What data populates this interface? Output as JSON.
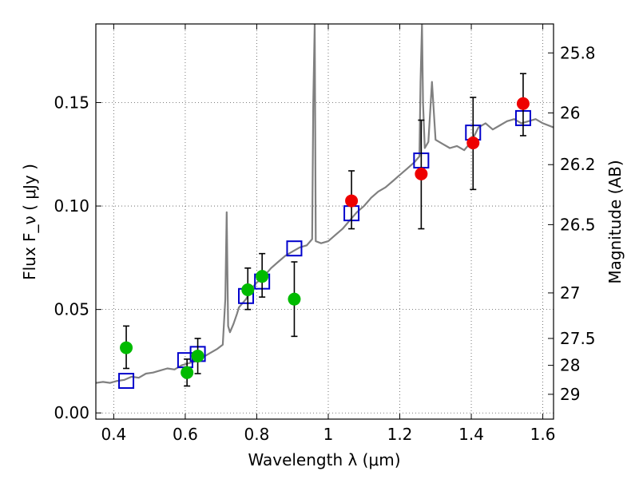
{
  "chart_data": {
    "type": "scatter",
    "xlabel": "Wavelength  λ (μm)",
    "ylabel": "Flux  F_ν  ( μJy )",
    "y2label": "Magnitude (AB)",
    "xlim": [
      0.35,
      1.63
    ],
    "ylim": [
      -0.003,
      0.188
    ],
    "grid": true,
    "legend": "none",
    "x_ticks": [
      0.4,
      0.6,
      0.8,
      1.0,
      1.2,
      1.4,
      1.6
    ],
    "x_tick_labels": [
      "0.4",
      "0.6",
      "0.8",
      "1",
      "1.2",
      "1.4",
      "1.6"
    ],
    "y_ticks": [
      0.0,
      0.05,
      0.1,
      0.15
    ],
    "y_tick_labels": [
      "0.00",
      "0.05",
      "0.10",
      "0.15"
    ],
    "y2_ticks": [
      {
        "label": "25.8",
        "flux": 0.174
      },
      {
        "label": "26",
        "flux": 0.145
      },
      {
        "label": "26.2",
        "flux": 0.12
      },
      {
        "label": "26.5",
        "flux": 0.091
      },
      {
        "label": "27",
        "flux": 0.058
      },
      {
        "label": "27.5",
        "flux": 0.036
      },
      {
        "label": "28",
        "flux": 0.023
      },
      {
        "label": "29",
        "flux": 0.009
      }
    ],
    "series": [
      {
        "kind": "line",
        "color": "#808080",
        "points": [
          [
            0.35,
            0.0145
          ],
          [
            0.37,
            0.015
          ],
          [
            0.39,
            0.0145
          ],
          [
            0.41,
            0.0155
          ],
          [
            0.43,
            0.016
          ],
          [
            0.45,
            0.0175
          ],
          [
            0.47,
            0.017
          ],
          [
            0.49,
            0.019
          ],
          [
            0.51,
            0.0195
          ],
          [
            0.53,
            0.0205
          ],
          [
            0.55,
            0.0215
          ],
          [
            0.57,
            0.021
          ],
          [
            0.59,
            0.023
          ],
          [
            0.61,
            0.024
          ],
          [
            0.63,
            0.025
          ],
          [
            0.65,
            0.027
          ],
          [
            0.67,
            0.029
          ],
          [
            0.69,
            0.031
          ],
          [
            0.705,
            0.033
          ],
          [
            0.712,
            0.055
          ],
          [
            0.716,
            0.097
          ],
          [
            0.72,
            0.042
          ],
          [
            0.725,
            0.039
          ],
          [
            0.735,
            0.043
          ],
          [
            0.745,
            0.048
          ],
          [
            0.75,
            0.051
          ],
          [
            0.76,
            0.053
          ],
          [
            0.77,
            0.055
          ],
          [
            0.78,
            0.058
          ],
          [
            0.79,
            0.061
          ],
          [
            0.8,
            0.063
          ],
          [
            0.82,
            0.066
          ],
          [
            0.84,
            0.07
          ],
          [
            0.86,
            0.073
          ],
          [
            0.88,
            0.076
          ],
          [
            0.9,
            0.078
          ],
          [
            0.92,
            0.08
          ],
          [
            0.94,
            0.081
          ],
          [
            0.955,
            0.084
          ],
          [
            0.958,
            0.15
          ],
          [
            0.962,
            0.188
          ],
          [
            0.965,
            0.083
          ],
          [
            0.98,
            0.082
          ],
          [
            1.0,
            0.083
          ],
          [
            1.02,
            0.086
          ],
          [
            1.04,
            0.089
          ],
          [
            1.06,
            0.093
          ],
          [
            1.08,
            0.097
          ],
          [
            1.1,
            0.1
          ],
          [
            1.12,
            0.104
          ],
          [
            1.14,
            0.107
          ],
          [
            1.16,
            0.109
          ],
          [
            1.18,
            0.112
          ],
          [
            1.2,
            0.115
          ],
          [
            1.22,
            0.118
          ],
          [
            1.24,
            0.121
          ],
          [
            1.255,
            0.124
          ],
          [
            1.258,
            0.16
          ],
          [
            1.262,
            0.188
          ],
          [
            1.265,
            0.15
          ],
          [
            1.27,
            0.128
          ],
          [
            1.28,
            0.131
          ],
          [
            1.29,
            0.16
          ],
          [
            1.3,
            0.132
          ],
          [
            1.32,
            0.13
          ],
          [
            1.34,
            0.128
          ],
          [
            1.36,
            0.129
          ],
          [
            1.38,
            0.127
          ],
          [
            1.4,
            0.131
          ],
          [
            1.42,
            0.138
          ],
          [
            1.44,
            0.14
          ],
          [
            1.46,
            0.137
          ],
          [
            1.48,
            0.139
          ],
          [
            1.5,
            0.141
          ],
          [
            1.52,
            0.142
          ],
          [
            1.54,
            0.14
          ],
          [
            1.56,
            0.141
          ],
          [
            1.58,
            0.142
          ],
          [
            1.6,
            0.14
          ],
          [
            1.63,
            0.138
          ]
        ]
      },
      {
        "kind": "markers",
        "marker": "square",
        "color": "#0000cc",
        "points": [
          [
            0.435,
            0.0155
          ],
          [
            0.6,
            0.0255
          ],
          [
            0.635,
            0.0285
          ],
          [
            0.77,
            0.0565
          ],
          [
            0.815,
            0.0635
          ],
          [
            0.905,
            0.0795
          ],
          [
            1.065,
            0.0965
          ],
          [
            1.26,
            0.122
          ],
          [
            1.405,
            0.1355
          ],
          [
            1.545,
            0.1425
          ]
        ]
      },
      {
        "kind": "markers",
        "marker": "circle",
        "color": "#00bb00",
        "error_bars": true,
        "points": [
          [
            0.435,
            0.0315,
            0.0215,
            0.042
          ],
          [
            0.605,
            0.0195,
            0.013,
            0.026
          ],
          [
            0.635,
            0.0275,
            0.019,
            0.036
          ],
          [
            0.775,
            0.0595,
            0.05,
            0.07
          ],
          [
            0.815,
            0.066,
            0.056,
            0.077
          ],
          [
            0.905,
            0.055,
            0.037,
            0.073
          ]
        ]
      },
      {
        "kind": "markers",
        "marker": "circle",
        "color": "#ee0000",
        "error_bars": true,
        "points": [
          [
            1.065,
            0.1025,
            0.089,
            0.117
          ],
          [
            1.26,
            0.1155,
            0.089,
            0.1415
          ],
          [
            1.405,
            0.1305,
            0.108,
            0.1525
          ],
          [
            1.545,
            0.1495,
            0.134,
            0.164
          ]
        ]
      }
    ]
  }
}
